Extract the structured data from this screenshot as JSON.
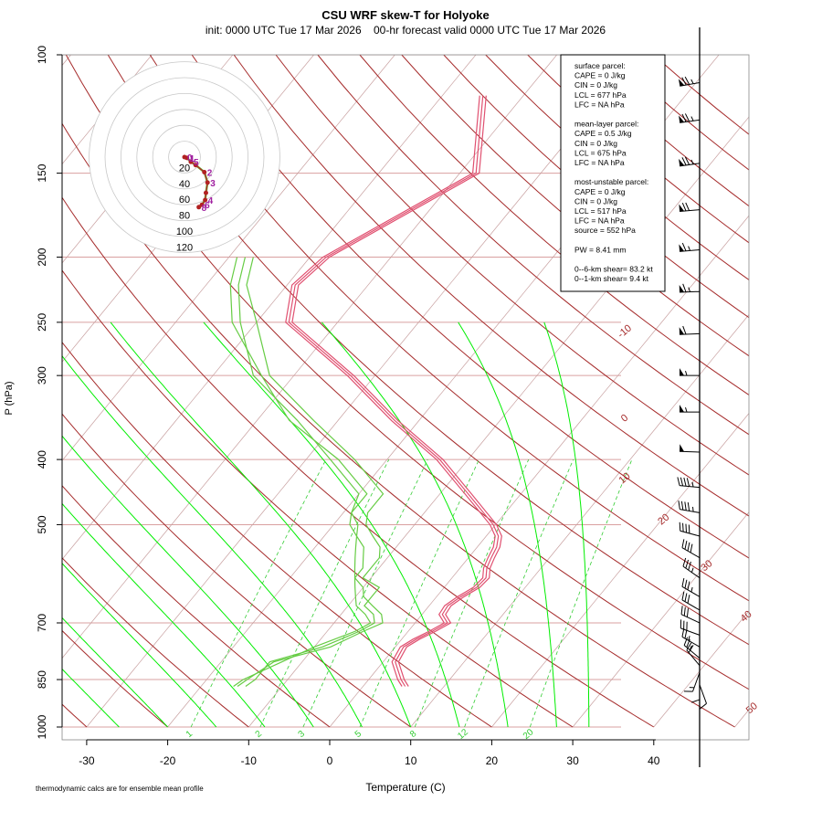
{
  "chart_data": {
    "type": "skew-t",
    "title": "CSU WRF skew-T for Holyoke",
    "subtitle": "init: 0000 UTC Tue 17 Mar 2026    00-hr forecast valid 0000 UTC Tue 17 Mar 2026",
    "xlabel": "Temperature (C)",
    "ylabel": "P (hPa)",
    "xlim": [
      -33,
      52
    ],
    "ylim": [
      1000,
      100
    ],
    "x_ticks": [
      -30,
      -20,
      -10,
      0,
      10,
      20,
      30,
      40
    ],
    "x_tick_labels": [
      "-30",
      "-20",
      "-10",
      "0",
      "10",
      "20",
      "30",
      "40"
    ],
    "p_ticks": [
      100,
      150,
      200,
      250,
      300,
      400,
      500,
      700,
      850,
      1000
    ],
    "p_tick_labels": [
      "100",
      "150",
      "200",
      "250",
      "300",
      "400",
      "500",
      "700",
      "850",
      "1000"
    ],
    "colors": {
      "isobar": "#d9a0a0",
      "isotherm": "#c8a0a0",
      "dry_adiabat": "#a52a2a",
      "moist_adiabat": "#00ee00",
      "mixing_ratio": "#33cc33",
      "temperature": "#e05070",
      "dewpoint": "#66cc44",
      "hodograph": "#b22222",
      "hodo_labels": "#a020a0"
    },
    "isotherm_labels": [
      {
        "t": -10,
        "label": "-10"
      },
      {
        "t": 0,
        "label": "0"
      },
      {
        "t": 10,
        "label": "10"
      },
      {
        "t": 20,
        "label": "20"
      },
      {
        "t": 30,
        "label": "30"
      },
      {
        "t": 40,
        "label": "40"
      },
      {
        "t": 50,
        "label": "50"
      }
    ],
    "mixing_ratio_labels": [
      "1",
      "2",
      "3",
      "5",
      "8",
      "12",
      "20"
    ],
    "mixing_ratios": [
      1,
      2,
      3,
      5,
      8,
      12,
      20
    ],
    "moist_adiabat_start_temps": [
      -26,
      -20,
      -14,
      -8,
      -2,
      4,
      10,
      16,
      22,
      28,
      32
    ],
    "temperature_members": [
      {
        "p": [
          870,
          850,
          800,
          760,
          740,
          720,
          700,
          680,
          660,
          640,
          620,
          600,
          580,
          560,
          540,
          520,
          500,
          450,
          400,
          350,
          300,
          250,
          220,
          200,
          150,
          115
        ],
        "t": [
          5.2,
          4.0,
          1.5,
          1.0,
          1.8,
          3.0,
          4.0,
          2.5,
          2.3,
          3.0,
          4.0,
          4.2,
          3.3,
          2.8,
          2.4,
          1.5,
          -0.3,
          -6.5,
          -13.5,
          -23,
          -33,
          -46,
          -49,
          -48,
          -38,
          -45
        ]
      },
      {
        "p": [
          870,
          850,
          800,
          760,
          740,
          720,
          700,
          680,
          660,
          640,
          620,
          600,
          580,
          560,
          540,
          520,
          500,
          450,
          400,
          350,
          300,
          250,
          220,
          200,
          150,
          115
        ],
        "t": [
          5.6,
          4.4,
          1.9,
          1.4,
          2.2,
          3.4,
          4.4,
          2.9,
          2.7,
          3.4,
          4.4,
          4.6,
          3.7,
          3.2,
          2.8,
          1.9,
          0.1,
          -6.1,
          -13.1,
          -22.6,
          -32.6,
          -45.6,
          -48.6,
          -47.6,
          -37.6,
          -44.6
        ]
      },
      {
        "p": [
          870,
          850,
          800,
          760,
          740,
          720,
          700,
          680,
          660,
          640,
          620,
          600,
          580,
          560,
          540,
          520,
          500,
          450,
          400,
          350,
          300,
          250,
          220,
          200,
          150,
          115
        ],
        "t": [
          4.8,
          3.6,
          1.1,
          0.6,
          1.4,
          2.6,
          3.6,
          2.1,
          1.9,
          2.6,
          3.6,
          3.8,
          2.9,
          2.4,
          2.0,
          1.1,
          -0.7,
          -6.9,
          -13.9,
          -23.4,
          -33.4,
          -46.4,
          -49.4,
          -48.4,
          -38.4,
          -45.4
        ]
      }
    ],
    "dewpoint_members": [
      {
        "p": [
          870,
          850,
          800,
          760,
          720,
          700,
          680,
          660,
          640,
          620,
          600,
          580,
          560,
          540,
          520,
          500,
          480,
          450,
          400,
          350,
          300,
          250,
          220,
          200
        ],
        "t": [
          -14.5,
          -14,
          -14,
          -9,
          -6,
          -5,
          -6,
          -8,
          -8,
          -8,
          -11,
          -11,
          -11,
          -12,
          -14,
          -16,
          -17,
          -17,
          -24,
          -33,
          -43,
          -50,
          -55,
          -57
        ]
      },
      {
        "p": [
          870,
          850,
          800,
          760,
          720,
          700,
          680,
          660,
          640,
          620,
          600,
          580,
          560,
          540,
          520,
          500,
          480,
          450,
          400,
          350,
          300,
          250,
          220,
          200
        ],
        "t": [
          -15.5,
          -15,
          -13.5,
          -8,
          -5.5,
          -4,
          -5,
          -7,
          -9,
          -10,
          -12,
          -13,
          -14,
          -15,
          -16,
          -17,
          -19,
          -20,
          -27,
          -35,
          -45,
          -52,
          -56,
          -58
        ]
      },
      {
        "p": [
          870,
          850,
          800,
          760,
          720,
          700,
          680,
          660,
          640,
          620,
          600,
          580,
          560,
          540,
          520,
          500,
          480,
          450,
          400,
          350,
          300,
          250,
          220,
          200
        ],
        "t": [
          -16,
          -15.5,
          -12.5,
          -10,
          -6.5,
          -5.5,
          -7,
          -9,
          -10,
          -11,
          -12,
          -12,
          -13,
          -14,
          -16,
          -18,
          -19,
          -19,
          -26,
          -36,
          -44,
          -53,
          -57,
          -59
        ]
      }
    ],
    "wind_barbs": [
      {
        "p": 110,
        "speed_kt": 75,
        "dir_deg": 260
      },
      {
        "p": 125,
        "speed_kt": 75,
        "dir_deg": 262
      },
      {
        "p": 145,
        "speed_kt": 75,
        "dir_deg": 262
      },
      {
        "p": 170,
        "speed_kt": 70,
        "dir_deg": 265
      },
      {
        "p": 195,
        "speed_kt": 65,
        "dir_deg": 265
      },
      {
        "p": 225,
        "speed_kt": 65,
        "dir_deg": 268
      },
      {
        "p": 260,
        "speed_kt": 60,
        "dir_deg": 268
      },
      {
        "p": 300,
        "speed_kt": 55,
        "dir_deg": 270
      },
      {
        "p": 340,
        "speed_kt": 55,
        "dir_deg": 270
      },
      {
        "p": 390,
        "speed_kt": 50,
        "dir_deg": 272
      },
      {
        "p": 440,
        "speed_kt": 45,
        "dir_deg": 275
      },
      {
        "p": 480,
        "speed_kt": 45,
        "dir_deg": 280
      },
      {
        "p": 520,
        "speed_kt": 40,
        "dir_deg": 285
      },
      {
        "p": 560,
        "speed_kt": 40,
        "dir_deg": 300
      },
      {
        "p": 600,
        "speed_kt": 35,
        "dir_deg": 305
      },
      {
        "p": 640,
        "speed_kt": 35,
        "dir_deg": 300
      },
      {
        "p": 670,
        "speed_kt": 30,
        "dir_deg": 300
      },
      {
        "p": 700,
        "speed_kt": 30,
        "dir_deg": 295
      },
      {
        "p": 730,
        "speed_kt": 30,
        "dir_deg": 290
      },
      {
        "p": 760,
        "speed_kt": 25,
        "dir_deg": 300
      },
      {
        "p": 790,
        "speed_kt": 25,
        "dir_deg": 310
      },
      {
        "p": 810,
        "speed_kt": 20,
        "dir_deg": 320
      },
      {
        "p": 830,
        "speed_kt": 15,
        "dir_deg": 200
      },
      {
        "p": 850,
        "speed_kt": 10,
        "dir_deg": 180
      },
      {
        "p": 865,
        "speed_kt": 10,
        "dir_deg": 160
      }
    ],
    "hodograph": {
      "ring_labels": [
        "20",
        "40",
        "60",
        "80",
        "100",
        "120"
      ],
      "ring_values": [
        20,
        40,
        60,
        80,
        100,
        120
      ],
      "u": [
        0,
        3,
        8,
        14,
        25,
        29,
        27,
        26,
        22,
        18
      ],
      "v": [
        0,
        -1,
        -6,
        -10,
        -19,
        -32,
        -45,
        -54,
        -60,
        -63
      ],
      "level_labels": [
        "0",
        "1",
        "5",
        "2",
        "3",
        "4",
        "6",
        "8"
      ],
      "level_label_index": [
        0,
        1,
        2,
        4,
        5,
        7,
        8,
        9
      ]
    },
    "info_box": {
      "lines": [
        "surface parcel:",
        "CAPE = 0 J/kg",
        "CIN = 0 J/kg",
        "LCL = 677 hPa",
        "LFC = NA hPa",
        "",
        "mean-layer parcel:",
        "CAPE = 0.5 J/kg",
        "CIN = 0 J/kg",
        "LCL = 675 hPa",
        "LFC = NA hPa",
        "",
        "most-unstable parcel:",
        "CAPE = 0 J/kg",
        "CIN = 0 J/kg",
        "LCL = 517 hPa",
        "LFC = NA hPa",
        "source = 552 hPa",
        "",
        "PW =  8.41 mm",
        "",
        "0--6-km shear= 83.2 kt",
        "0--1-km shear= 9.4 kt"
      ]
    },
    "footnote": "thermodynamic calcs are for ensemble mean profile"
  }
}
